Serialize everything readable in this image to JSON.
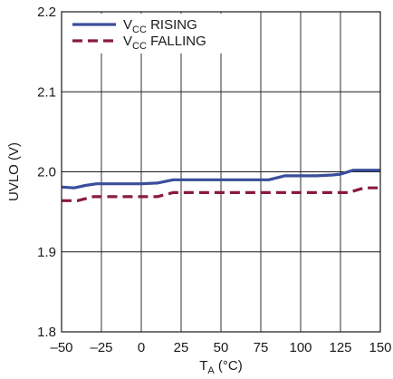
{
  "chart_data": {
    "type": "line",
    "xlabel": {
      "main": "T",
      "sub": "A",
      "rest": " (°C)"
    },
    "ylabel": "UVLO (V)",
    "xlim": [
      -50,
      150
    ],
    "ylim": [
      1.8,
      2.2
    ],
    "xticks": [
      -50,
      -25,
      0,
      25,
      50,
      75,
      100,
      125,
      150
    ],
    "xtick_labels": [
      "–50",
      "–25",
      "0",
      "25",
      "50",
      "75",
      "100",
      "125",
      "150"
    ],
    "yticks": [
      1.8,
      1.9,
      2.0,
      2.1,
      2.2
    ],
    "ytick_labels": [
      "1.8",
      "1.9",
      "2.0",
      "2.1",
      "2.2"
    ],
    "grid": true,
    "legend_position": "top-left",
    "series": [
      {
        "legend": {
          "main": "V",
          "sub": "CC",
          "rest": " RISING"
        },
        "color": "#3a4e9c",
        "dash": "solid",
        "x": [
          -50,
          -42,
          -35,
          -28,
          -20,
          -10,
          0,
          10,
          20,
          30,
          40,
          50,
          60,
          70,
          80,
          90,
          100,
          110,
          120,
          125,
          133,
          140,
          150
        ],
        "y": [
          1.981,
          1.98,
          1.983,
          1.985,
          1.985,
          1.985,
          1.985,
          1.986,
          1.99,
          1.99,
          1.99,
          1.99,
          1.99,
          1.99,
          1.99,
          1.995,
          1.995,
          1.995,
          1.996,
          1.997,
          2.002,
          2.002,
          2.002
        ]
      },
      {
        "legend": {
          "main": "V",
          "sub": "CC",
          "rest": " FALLING"
        },
        "color": "#8b1a3c",
        "dash": "dashed",
        "x": [
          -50,
          -40,
          -30,
          -20,
          -10,
          0,
          10,
          20,
          30,
          40,
          50,
          60,
          70,
          80,
          90,
          100,
          110,
          120,
          130,
          140,
          150
        ],
        "y": [
          1.964,
          1.964,
          1.969,
          1.969,
          1.969,
          1.969,
          1.969,
          1.974,
          1.974,
          1.974,
          1.974,
          1.974,
          1.974,
          1.974,
          1.974,
          1.974,
          1.974,
          1.974,
          1.974,
          1.98,
          1.98
        ]
      }
    ]
  }
}
